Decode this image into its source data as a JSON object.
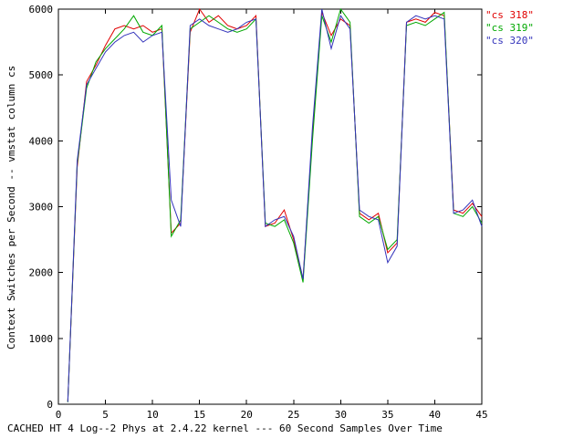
{
  "title": "CACHED HT 4 Log--2 Phys at 2.4.22 kernel --- 60 Second Samples Over Time",
  "ylabel": "Context Switches per Second -- vmstat column cs",
  "chart_data": {
    "type": "line",
    "xlim": [
      0,
      45
    ],
    "ylim": [
      0,
      6000
    ],
    "xticks": [
      0,
      5,
      10,
      15,
      20,
      25,
      30,
      35,
      40,
      45
    ],
    "yticks": [
      0,
      1000,
      2000,
      3000,
      4000,
      5000,
      6000
    ],
    "grid": false,
    "legend_position": "top-right-outside",
    "x": [
      1,
      2,
      3,
      4,
      5,
      6,
      7,
      8,
      9,
      10,
      11,
      12,
      13,
      14,
      15,
      16,
      17,
      18,
      19,
      20,
      21,
      22,
      23,
      24,
      25,
      26,
      27,
      28,
      29,
      30,
      31,
      32,
      33,
      34,
      35,
      36,
      37,
      38,
      39,
      40,
      41,
      42,
      43,
      44,
      45
    ],
    "series": [
      {
        "name": "cs 318",
        "label": "\"cs 318\"",
        "color": "#e00000",
        "values": [
          40,
          3600,
          4900,
          5150,
          5450,
          5700,
          5750,
          5700,
          5750,
          5650,
          5700,
          2600,
          2750,
          5650,
          6000,
          5800,
          5900,
          5750,
          5700,
          5750,
          5900,
          2700,
          2750,
          2950,
          2500,
          1900,
          4100,
          5950,
          5600,
          5850,
          5750,
          2900,
          2800,
          2900,
          2300,
          2450,
          5800,
          5850,
          5800,
          5950,
          5900,
          2950,
          2900,
          3050,
          2850
        ]
      },
      {
        "name": "cs 319",
        "label": "\"cs 319\"",
        "color": "#00a800",
        "values": [
          30,
          3650,
          4800,
          5200,
          5400,
          5550,
          5700,
          5900,
          5650,
          5600,
          5750,
          2550,
          2800,
          5700,
          5800,
          5900,
          5800,
          5700,
          5650,
          5700,
          5850,
          2750,
          2700,
          2800,
          2450,
          1850,
          4000,
          5900,
          5500,
          6000,
          5800,
          2850,
          2750,
          2850,
          2350,
          2500,
          5750,
          5800,
          5750,
          5850,
          5950,
          2900,
          2850,
          3000,
          2750
        ]
      },
      {
        "name": "cs 320",
        "label": "\"cs 320\"",
        "color": "#3333bb",
        "values": [
          35,
          3700,
          4850,
          5100,
          5350,
          5500,
          5600,
          5650,
          5500,
          5600,
          5650,
          3100,
          2700,
          5750,
          5850,
          5750,
          5700,
          5650,
          5700,
          5800,
          5850,
          2700,
          2800,
          2850,
          2550,
          1900,
          4200,
          6000,
          5400,
          5900,
          5700,
          2950,
          2850,
          2800,
          2150,
          2400,
          5800,
          5900,
          5850,
          5900,
          5850,
          2900,
          2950,
          3100,
          2700
        ]
      }
    ]
  }
}
